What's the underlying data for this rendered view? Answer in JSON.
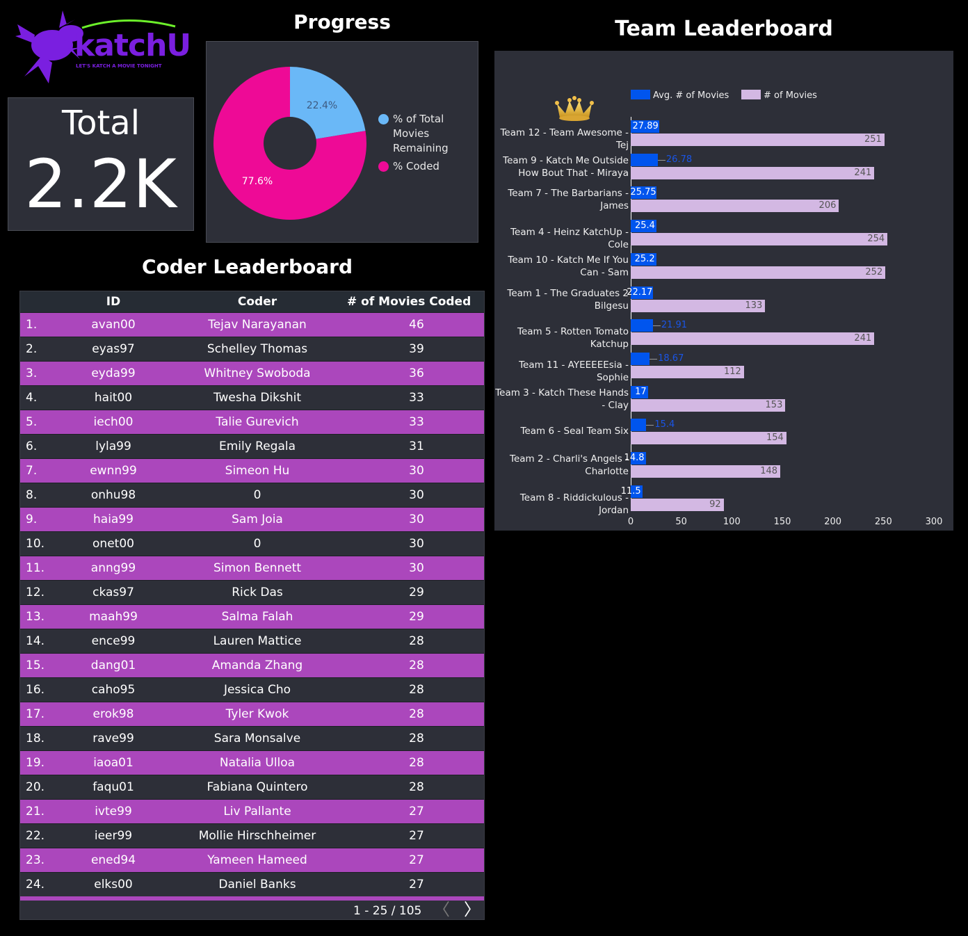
{
  "logo": {
    "brand": "katchU",
    "tagline": "LET'S KATCH A MOVIE TONIGHT"
  },
  "total": {
    "label": "Total",
    "value": "2.2K"
  },
  "progress": {
    "title": "Progress",
    "slices": [
      {
        "name": "% of Total Movies Remaining",
        "value": 22.4,
        "label": "22.4%",
        "color": "#6ab8f7"
      },
      {
        "name": "% Coded",
        "value": 77.6,
        "label": "77.6%",
        "color": "#ee0a96"
      }
    ]
  },
  "coder_leaderboard": {
    "title": "Coder Leaderboard",
    "columns": [
      "ID",
      "Coder",
      "# of Movies Coded"
    ],
    "sort_icon": "caret-down-icon",
    "rows": [
      [
        "1.",
        "avan00",
        "Tejav Narayanan",
        "46"
      ],
      [
        "2.",
        "eyas97",
        "Schelley Thomas",
        "39"
      ],
      [
        "3.",
        "eyda99",
        "Whitney Swoboda",
        "36"
      ],
      [
        "4.",
        "hait00",
        "Twesha Dikshit",
        "33"
      ],
      [
        "5.",
        "iech00",
        "Talie Gurevich",
        "33"
      ],
      [
        "6.",
        "lyla99",
        "Emily Regala",
        "31"
      ],
      [
        "7.",
        "ewnn99",
        "Simeon Hu",
        "30"
      ],
      [
        "8.",
        "onhu98",
        "0",
        "30"
      ],
      [
        "9.",
        "haia99",
        "Sam Joia",
        "30"
      ],
      [
        "10.",
        "onet00",
        "0",
        "30"
      ],
      [
        "11.",
        "anng99",
        "Simon Bennett",
        "30"
      ],
      [
        "12.",
        "ckas97",
        "Rick Das",
        "29"
      ],
      [
        "13.",
        "maah99",
        "Salma Falah",
        "29"
      ],
      [
        "14.",
        "ence99",
        "Lauren Mattice",
        "28"
      ],
      [
        "15.",
        "dang01",
        "Amanda Zhang",
        "28"
      ],
      [
        "16.",
        "caho95",
        "Jessica Cho",
        "28"
      ],
      [
        "17.",
        "erok98",
        "Tyler Kwok",
        "28"
      ],
      [
        "18.",
        "rave99",
        "Sara Monsalve",
        "28"
      ],
      [
        "19.",
        "iaoa01",
        "Natalia Ulloa",
        "28"
      ],
      [
        "20.",
        "faqu01",
        "Fabiana Quintero",
        "28"
      ],
      [
        "21.",
        "ivte99",
        "Liv Pallante",
        "27"
      ],
      [
        "22.",
        "ieer99",
        "Mollie Hirschheimer",
        "27"
      ],
      [
        "23.",
        "ened94",
        "Yameen Hameed",
        "27"
      ],
      [
        "24.",
        "elks00",
        "Daniel Banks",
        "27"
      ]
    ],
    "pagination": "1 - 25 / 105",
    "row_color": "#ab47bc"
  },
  "chart_data": {
    "type": "bar",
    "orientation": "horizontal",
    "title": "Team Leaderboard",
    "categories": [
      "Team 12 - Team Awesome - Tej",
      "Team 9 - Katch Me Outside How Bout That - Miraya",
      "Team 7 - The Barbarians - James",
      "Team 4 - Heinz KatchUp - Cole",
      "Team 10 - Katch Me If You Can - Sam",
      "Team 1 - The Graduates 2 Bilgesu",
      "Team 5 - Rotten Tomato Katchup",
      "Team 11 - AYEEEEEsia - Sophie",
      "Team 3 - Katch These Hands - Clay",
      "Team 6 - Seal Team Six",
      "Team 2 - Charli's Angels - Charlotte",
      "Team 8 - Riddickulous - Jordan"
    ],
    "series": [
      {
        "name": "Avg. # of Movies",
        "color": "#0055ee",
        "values": [
          27.89,
          26.78,
          25.75,
          25.4,
          25.2,
          22.17,
          21.91,
          18.67,
          17,
          15.4,
          14.8,
          11.5
        ]
      },
      {
        "name": "# of Movies",
        "color": "#d3b8e3",
        "values": [
          251,
          241,
          206,
          254,
          252,
          133,
          241,
          112,
          153,
          154,
          148,
          92
        ]
      }
    ],
    "xlim": [
      0,
      300
    ],
    "xticks": [
      "0",
      "50",
      "100",
      "150",
      "200",
      "250",
      "300"
    ],
    "legend": "top",
    "grid": false,
    "decoration": "crown-icon"
  }
}
